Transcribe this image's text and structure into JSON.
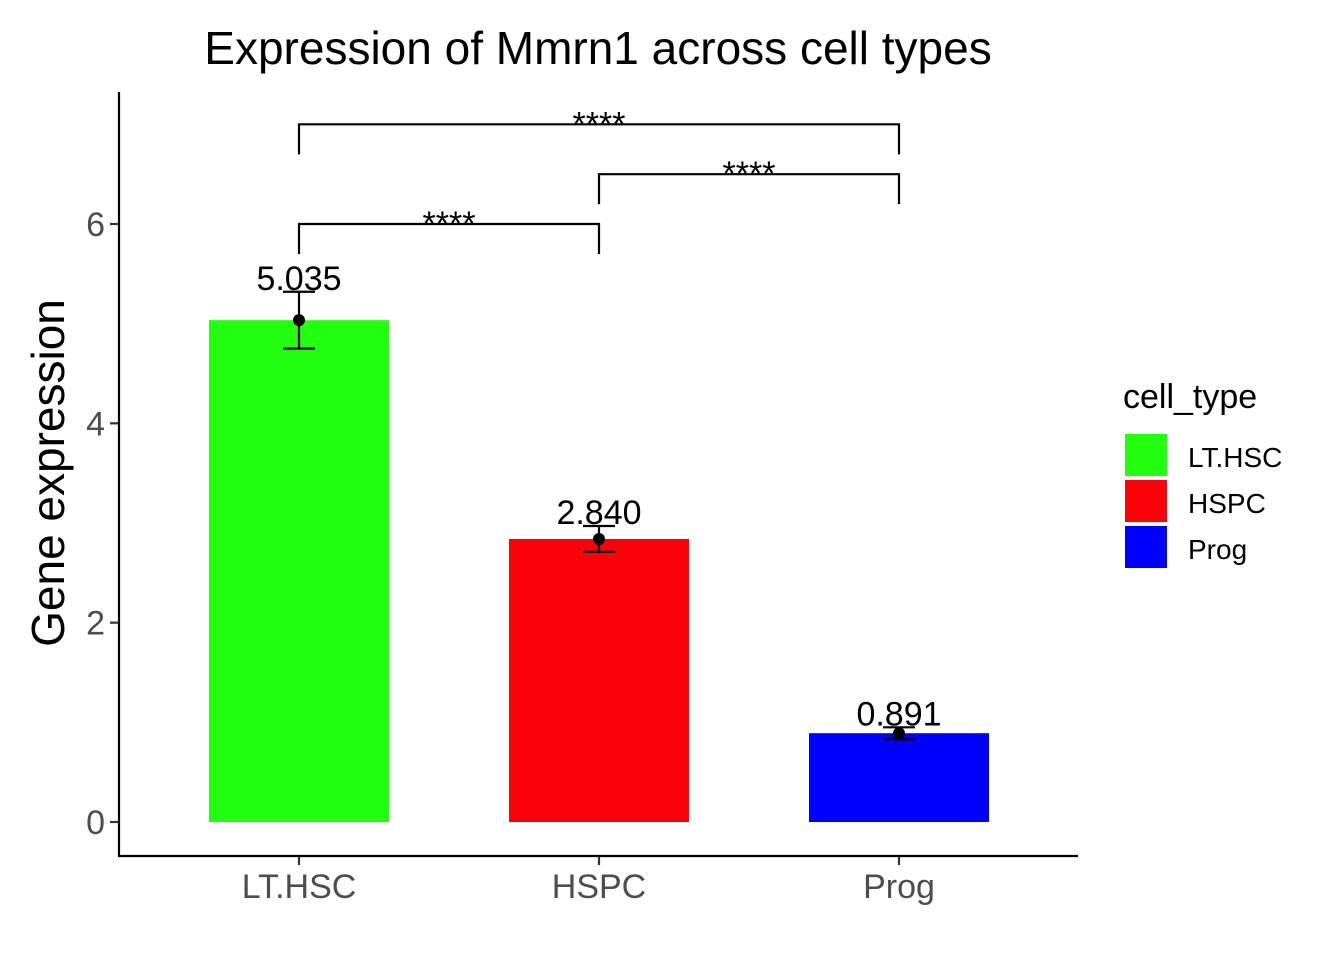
{
  "chart_data": {
    "type": "bar",
    "title": "Expression of Mmrn1 across cell types",
    "xlabel": "",
    "ylabel": "Gene expression",
    "categories": [
      "LT.HSC",
      "HSPC",
      "Prog"
    ],
    "values": [
      5.035,
      2.84,
      0.891
    ],
    "value_labels": [
      "5.035",
      "2.840",
      "0.891"
    ],
    "error_bars": [
      {
        "low": 4.75,
        "high": 5.32
      },
      {
        "low": 2.71,
        "high": 2.97
      },
      {
        "low": 0.83,
        "high": 0.95
      }
    ],
    "colors": [
      "#22FF0E",
      "#FA0207",
      "#0000FE"
    ],
    "ylim": [
      -0.34,
      7.3
    ],
    "yticks": [
      0,
      2,
      4,
      6
    ],
    "ytick_labels": [
      "0",
      "2",
      "4",
      "6"
    ],
    "grid": false,
    "legend": {
      "title": "cell_type",
      "position": "right",
      "entries": [
        "LT.HSC",
        "HSPC",
        "Prog"
      ]
    },
    "significance": [
      {
        "from": "LT.HSC",
        "to": "HSPC",
        "label": "****",
        "y": 6.0
      },
      {
        "from": "HSPC",
        "to": "Prog",
        "label": "****",
        "y": 6.5
      },
      {
        "from": "LT.HSC",
        "to": "Prog",
        "label": "****",
        "y": 7.0
      }
    ]
  }
}
